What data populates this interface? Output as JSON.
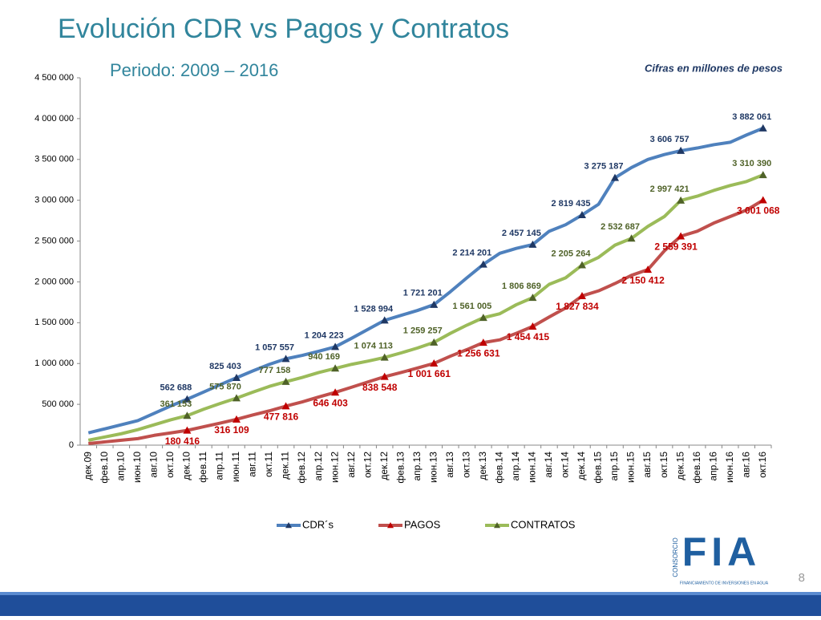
{
  "page_title": "Evolución CDR vs Pagos y Contratos",
  "subtitle": "Periodo: 2009 – 2016",
  "note": "Cifras en millones de pesos",
  "page_number": "8",
  "logo": {
    "top": "CONSORCIO",
    "mark": "FIA",
    "caption": "FINANCIAMIENTO DE INVERSIONES EN AGUA"
  },
  "chart_data": {
    "type": "line",
    "categories": [
      "дек.09",
      "фев.10",
      "апр.10",
      "июн.10",
      "авг.10",
      "окт.10",
      "дек.10",
      "фев.11",
      "апр.11",
      "июн.11",
      "авг.11",
      "окт.11",
      "дек.11",
      "фев.12",
      "апр.12",
      "июн.12",
      "авг.12",
      "окт.12",
      "дек.12",
      "фев.13",
      "апр.13",
      "июн.13",
      "авг.13",
      "окт.13",
      "дек.13",
      "фев.14",
      "апр.14",
      "июн.14",
      "авг.14",
      "окт.14",
      "дек.14",
      "фев.15",
      "апр.15",
      "июн.15",
      "авг.15",
      "окт.15",
      "дек.15",
      "фев.16",
      "апр.16",
      "июн.16",
      "авг.16",
      "окт.16"
    ],
    "ylim": [
      0,
      4500000
    ],
    "yticks": [
      0,
      {
        "value": 500000,
        "label": "500 000"
      },
      {
        "value": 1000000,
        "label": "1 000 000"
      },
      {
        "value": 1500000,
        "label": "1 500 000"
      },
      {
        "value": 2000000,
        "label": "2 000 000"
      },
      {
        "value": 2500000,
        "label": "2 500 000"
      },
      {
        "value": 3000000,
        "label": "3 000 000"
      },
      {
        "value": 3500000,
        "label": "3 500 000"
      },
      {
        "value": 4000000,
        "label": "4 000 000"
      },
      {
        "value": 4500000,
        "label": "4 500 000"
      }
    ],
    "grid": false,
    "legend": "bottom",
    "series": [
      {
        "name": "CDR´s",
        "color": "#4f81bd",
        "label_color": "#1f3864",
        "values": [
          150000,
          200000,
          250000,
          300000,
          390000,
          480000,
          562688,
          650000,
          740000,
          825403,
          910000,
          990000,
          1057557,
          1100000,
          1150000,
          1204223,
          1310000,
          1420000,
          1528994,
          1590000,
          1650000,
          1721201,
          1880000,
          2050000,
          2214201,
          2350000,
          2410000,
          2457145,
          2620000,
          2700000,
          2819435,
          2950000,
          3275187,
          3400000,
          3500000,
          3560000,
          3606757,
          3640000,
          3680000,
          3710000,
          3800000,
          3882061
        ],
        "value_labels": [
          null,
          null,
          null,
          null,
          null,
          null,
          "562 688",
          null,
          null,
          "825 403",
          null,
          null,
          "1 057 557",
          null,
          null,
          "1 204 223",
          null,
          null,
          "1 528 994",
          null,
          null,
          "1 721 201",
          null,
          null,
          "2 214 201",
          null,
          null,
          "2 457 145",
          null,
          null,
          "2 819 435",
          null,
          "3 275 187",
          null,
          null,
          null,
          "3 606 757",
          null,
          null,
          null,
          null,
          "3 882 061"
        ]
      },
      {
        "name": "PAGOS",
        "color": "#c0504d",
        "label_color": "#c00000",
        "values": [
          20000,
          40000,
          60000,
          80000,
          120000,
          150000,
          180416,
          225000,
          270000,
          316109,
          370000,
          420000,
          477816,
          530000,
          590000,
          646403,
          710000,
          775000,
          838548,
          890000,
          945000,
          1001661,
          1090000,
          1170000,
          1256631,
          1290000,
          1370000,
          1454415,
          1570000,
          1680000,
          1827834,
          1890000,
          1980000,
          2080000,
          2150412,
          2380000,
          2559391,
          2620000,
          2720000,
          2800000,
          2880000,
          3001068
        ],
        "value_labels": [
          null,
          null,
          null,
          null,
          null,
          null,
          "180 416",
          null,
          null,
          "316 109",
          null,
          null,
          "477 816",
          null,
          null,
          "646 403",
          null,
          null,
          "838 548",
          null,
          null,
          "1 001 661",
          null,
          null,
          "1 256 631",
          null,
          null,
          "1 454 415",
          null,
          null,
          "1 827 834",
          null,
          null,
          null,
          "2 150 412",
          null,
          "2 559 391",
          null,
          null,
          null,
          null,
          "3 001 068"
        ]
      },
      {
        "name": "CONTRATOS",
        "color": "#9bbb59",
        "label_color": "#4f6228",
        "values": [
          60000,
          100000,
          140000,
          190000,
          250000,
          310000,
          361153,
          440000,
          510000,
          575870,
          650000,
          720000,
          777158,
          830000,
          890000,
          940169,
          990000,
          1030000,
          1074113,
          1130000,
          1190000,
          1259257,
          1370000,
          1470000,
          1561005,
          1610000,
          1720000,
          1806869,
          1970000,
          2050000,
          2205264,
          2300000,
          2450000,
          2532687,
          2680000,
          2800000,
          2997421,
          3050000,
          3120000,
          3180000,
          3230000,
          3310390
        ],
        "value_labels": [
          null,
          null,
          null,
          null,
          null,
          null,
          "361 153",
          null,
          null,
          "575 870",
          null,
          null,
          "777 158",
          null,
          null,
          "940 169",
          null,
          null,
          "1 074 113",
          null,
          null,
          "1 259 257",
          null,
          null,
          "1 561 005",
          null,
          null,
          "1 806 869",
          null,
          null,
          "2 205 264",
          null,
          null,
          "2 532 687",
          null,
          null,
          "2 997 421",
          null,
          null,
          null,
          null,
          "3 310 390"
        ]
      }
    ]
  }
}
